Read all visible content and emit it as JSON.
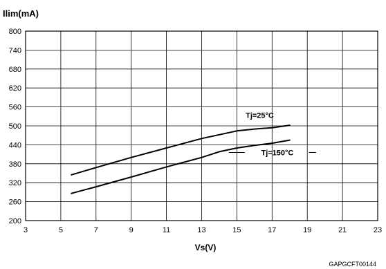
{
  "chart_data": {
    "type": "line",
    "ylabel": "Ilim(mA)",
    "xlabel": "Vs(V)",
    "xlim": [
      3,
      23
    ],
    "ylim": [
      200,
      800
    ],
    "xticks": [
      3,
      5,
      7,
      9,
      11,
      13,
      15,
      17,
      19,
      21,
      23
    ],
    "yticks": [
      200,
      260,
      320,
      380,
      440,
      500,
      560,
      620,
      680,
      740,
      800
    ],
    "grid": true,
    "series": [
      {
        "name": "Tj=25°C",
        "x": [
          5.6,
          7,
          9,
          11,
          13,
          14,
          15,
          16,
          17,
          18
        ],
        "y": [
          345,
          368,
          400,
          430,
          460,
          472,
          484,
          490,
          494,
          502
        ]
      },
      {
        "name": "Tj=150°C",
        "x": [
          5.6,
          7,
          9,
          11,
          13,
          14,
          15,
          16,
          17,
          18
        ],
        "y": [
          286,
          307,
          338,
          370,
          400,
          418,
          430,
          438,
          445,
          455
        ]
      }
    ],
    "annotations": [
      "Tj=25°C",
      "Tj=150°C"
    ],
    "footer_code": "GAPGCFT00144"
  }
}
